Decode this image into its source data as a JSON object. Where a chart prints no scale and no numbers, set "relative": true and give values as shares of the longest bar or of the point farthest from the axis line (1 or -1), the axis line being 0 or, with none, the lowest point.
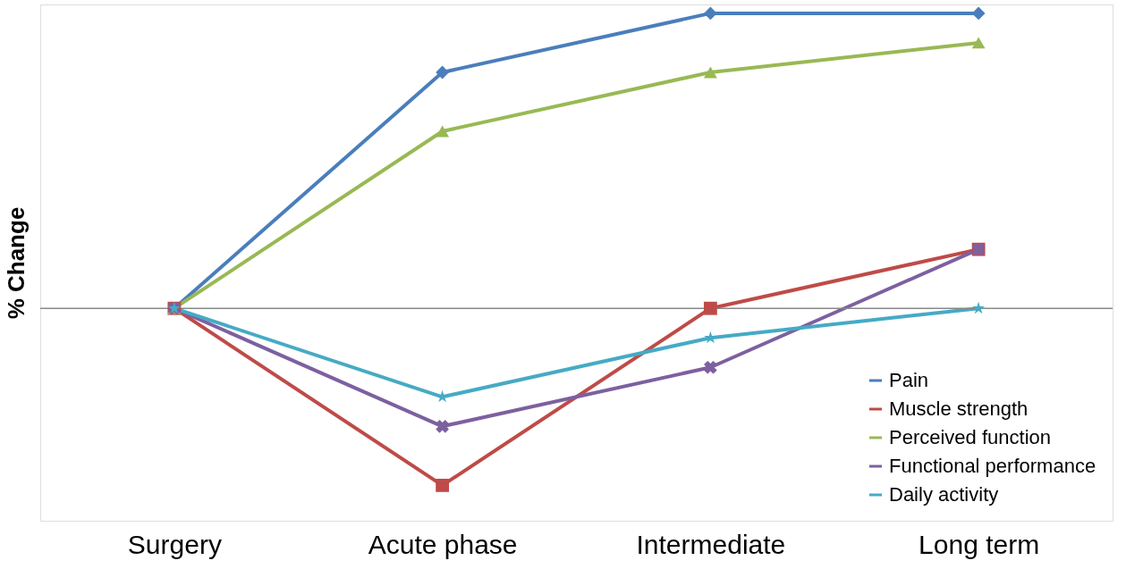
{
  "chart_data": {
    "type": "line",
    "relative": true,
    "ylabel": "% Change",
    "categories": [
      "Surgery",
      "Acute phase",
      "Intermediate",
      "Long term"
    ],
    "legend": "bottom right",
    "grid": false,
    "line_style": "solid",
    "series": [
      {
        "name": "Pain",
        "color": "#4a7ebb",
        "marker": "diamond",
        "values": [
          0,
          0.8,
          1,
          1
        ]
      },
      {
        "name": "Muscle strength",
        "color": "#be4b48",
        "marker": "square",
        "values": [
          0,
          -0.6,
          0,
          0.2
        ]
      },
      {
        "name": "Perceived function",
        "color": "#98b954",
        "marker": "triangle",
        "values": [
          0,
          0.6,
          0.8,
          0.9
        ]
      },
      {
        "name": "Functional performance",
        "color": "#7d60a0",
        "marker": "cross",
        "values": [
          0,
          -0.4,
          -0.2,
          0.2
        ]
      },
      {
        "name": "Daily activity",
        "color": "#46aac5",
        "marker": "star",
        "values": [
          0,
          -0.3,
          -0.1,
          0
        ]
      }
    ]
  }
}
